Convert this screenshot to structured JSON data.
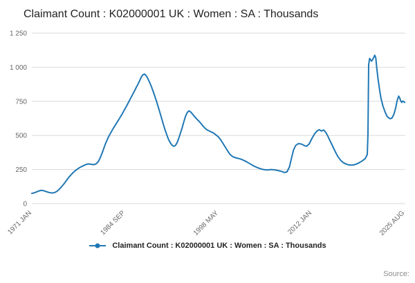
{
  "title": "Claimant Count : K02000001 UK : Women : SA : Thousands",
  "source": "Source:",
  "legend": {
    "label": "Claimant Count : K02000001 UK : Women : SA : Thousands"
  },
  "chart_data": {
    "type": "line",
    "title": "Claimant Count : K02000001 UK : Women : SA : Thousands",
    "xlabel": "",
    "ylabel": "",
    "xlim": [
      1971.0,
      2025.67
    ],
    "ylim": [
      0,
      1250
    ],
    "grid": "horizontal",
    "legend_position": "bottom",
    "line_color": "#1f77b4",
    "grid_color": "#d9d9d9",
    "axis_text_color": "#666666",
    "yticks": [
      {
        "value": 0,
        "label": "0"
      },
      {
        "value": 250,
        "label": "250"
      },
      {
        "value": 500,
        "label": "500"
      },
      {
        "value": 750,
        "label": "750"
      },
      {
        "value": 1000,
        "label": "1 000"
      },
      {
        "value": 1250,
        "label": "1 250"
      }
    ],
    "xticks": [
      {
        "value": 1971.0,
        "label": "1971 JAN"
      },
      {
        "value": 1984.67,
        "label": "1984 SEP"
      },
      {
        "value": 1998.33,
        "label": "1998 MAY"
      },
      {
        "value": 2012.0,
        "label": "2012 JAN"
      },
      {
        "value": 2025.58,
        "label": "2025 AUG"
      }
    ],
    "series": [
      {
        "name": "Claimant Count : K02000001 UK : Women : SA : Thousands",
        "points": [
          [
            1971.0,
            75
          ],
          [
            1971.25,
            78
          ],
          [
            1971.5,
            82
          ],
          [
            1971.75,
            87
          ],
          [
            1972.0,
            92
          ],
          [
            1972.25,
            96
          ],
          [
            1972.5,
            97
          ],
          [
            1972.75,
            94
          ],
          [
            1973.0,
            90
          ],
          [
            1973.25,
            86
          ],
          [
            1973.5,
            82
          ],
          [
            1973.75,
            80
          ],
          [
            1974.0,
            78
          ],
          [
            1974.25,
            80
          ],
          [
            1974.5,
            85
          ],
          [
            1974.75,
            93
          ],
          [
            1975.0,
            105
          ],
          [
            1975.25,
            118
          ],
          [
            1975.5,
            132
          ],
          [
            1975.75,
            148
          ],
          [
            1976.0,
            165
          ],
          [
            1976.25,
            182
          ],
          [
            1976.5,
            198
          ],
          [
            1976.75,
            212
          ],
          [
            1977.0,
            225
          ],
          [
            1977.25,
            237
          ],
          [
            1977.5,
            247
          ],
          [
            1977.75,
            256
          ],
          [
            1978.0,
            264
          ],
          [
            1978.25,
            271
          ],
          [
            1978.5,
            277
          ],
          [
            1978.75,
            283
          ],
          [
            1979.0,
            288
          ],
          [
            1979.25,
            291
          ],
          [
            1979.5,
            290
          ],
          [
            1979.75,
            288
          ],
          [
            1980.0,
            286
          ],
          [
            1980.25,
            288
          ],
          [
            1980.5,
            295
          ],
          [
            1980.75,
            310
          ],
          [
            1981.0,
            335
          ],
          [
            1981.25,
            365
          ],
          [
            1981.5,
            400
          ],
          [
            1981.75,
            435
          ],
          [
            1982.0,
            465
          ],
          [
            1982.25,
            492
          ],
          [
            1982.5,
            515
          ],
          [
            1982.75,
            537
          ],
          [
            1983.0,
            558
          ],
          [
            1983.25,
            578
          ],
          [
            1983.5,
            598
          ],
          [
            1983.75,
            618
          ],
          [
            1984.0,
            638
          ],
          [
            1984.25,
            660
          ],
          [
            1984.5,
            682
          ],
          [
            1984.75,
            705
          ],
          [
            1985.0,
            728
          ],
          [
            1985.25,
            752
          ],
          [
            1985.5,
            776
          ],
          [
            1985.75,
            800
          ],
          [
            1986.0,
            824
          ],
          [
            1986.25,
            848
          ],
          [
            1986.5,
            872
          ],
          [
            1986.75,
            898
          ],
          [
            1987.0,
            925
          ],
          [
            1987.25,
            945
          ],
          [
            1987.5,
            950
          ],
          [
            1987.75,
            938
          ],
          [
            1988.0,
            915
          ],
          [
            1988.25,
            888
          ],
          [
            1988.5,
            858
          ],
          [
            1988.75,
            825
          ],
          [
            1989.0,
            788
          ],
          [
            1989.25,
            750
          ],
          [
            1989.5,
            710
          ],
          [
            1989.75,
            668
          ],
          [
            1990.0,
            625
          ],
          [
            1990.25,
            582
          ],
          [
            1990.5,
            542
          ],
          [
            1990.75,
            505
          ],
          [
            1991.0,
            472
          ],
          [
            1991.25,
            448
          ],
          [
            1991.5,
            430
          ],
          [
            1991.75,
            420
          ],
          [
            1992.0,
            425
          ],
          [
            1992.25,
            445
          ],
          [
            1992.5,
            478
          ],
          [
            1992.75,
            515
          ],
          [
            1993.0,
            555
          ],
          [
            1993.25,
            600
          ],
          [
            1993.5,
            640
          ],
          [
            1993.75,
            668
          ],
          [
            1994.0,
            680
          ],
          [
            1994.25,
            672
          ],
          [
            1994.5,
            658
          ],
          [
            1994.75,
            642
          ],
          [
            1995.0,
            628
          ],
          [
            1995.25,
            615
          ],
          [
            1995.5,
            602
          ],
          [
            1995.75,
            588
          ],
          [
            1996.0,
            572
          ],
          [
            1996.25,
            558
          ],
          [
            1996.5,
            546
          ],
          [
            1996.75,
            538
          ],
          [
            1997.0,
            532
          ],
          [
            1997.25,
            526
          ],
          [
            1997.5,
            520
          ],
          [
            1997.75,
            512
          ],
          [
            1998.0,
            502
          ],
          [
            1998.25,
            492
          ],
          [
            1998.5,
            478
          ],
          [
            1998.75,
            460
          ],
          [
            1999.0,
            440
          ],
          [
            1999.25,
            420
          ],
          [
            1999.5,
            400
          ],
          [
            1999.75,
            380
          ],
          [
            2000.0,
            362
          ],
          [
            2000.25,
            350
          ],
          [
            2000.5,
            342
          ],
          [
            2001.0,
            334
          ],
          [
            2001.5,
            328
          ],
          [
            2002.0,
            318
          ],
          [
            2002.5,
            305
          ],
          [
            2003.0,
            290
          ],
          [
            2003.5,
            276
          ],
          [
            2004.0,
            264
          ],
          [
            2004.5,
            255
          ],
          [
            2005.0,
            249
          ],
          [
            2005.5,
            247
          ],
          [
            2006.0,
            250
          ],
          [
            2006.5,
            248
          ],
          [
            2007.0,
            243
          ],
          [
            2007.5,
            237
          ],
          [
            2008.0,
            228
          ],
          [
            2008.35,
            233
          ],
          [
            2008.7,
            268
          ],
          [
            2009.0,
            330
          ],
          [
            2009.3,
            392
          ],
          [
            2009.6,
            425
          ],
          [
            2010.0,
            440
          ],
          [
            2010.4,
            438
          ],
          [
            2010.8,
            428
          ],
          [
            2011.2,
            420
          ],
          [
            2011.6,
            438
          ],
          [
            2012.0,
            478
          ],
          [
            2012.4,
            512
          ],
          [
            2012.8,
            535
          ],
          [
            2013.1,
            542
          ],
          [
            2013.4,
            532
          ],
          [
            2013.7,
            540
          ],
          [
            2014.0,
            525
          ],
          [
            2014.3,
            498
          ],
          [
            2014.6,
            465
          ],
          [
            2015.0,
            425
          ],
          [
            2015.4,
            382
          ],
          [
            2015.8,
            345
          ],
          [
            2016.2,
            318
          ],
          [
            2016.6,
            300
          ],
          [
            2017.0,
            290
          ],
          [
            2017.4,
            284
          ],
          [
            2017.8,
            282
          ],
          [
            2018.2,
            285
          ],
          [
            2018.6,
            292
          ],
          [
            2019.0,
            302
          ],
          [
            2019.4,
            315
          ],
          [
            2019.8,
            330
          ],
          [
            2020.1,
            360
          ],
          [
            2020.2,
            510
          ],
          [
            2020.3,
            1020
          ],
          [
            2020.45,
            1065
          ],
          [
            2020.6,
            1052
          ],
          [
            2020.75,
            1045
          ],
          [
            2020.9,
            1058
          ],
          [
            2021.05,
            1072
          ],
          [
            2021.2,
            1088
          ],
          [
            2021.35,
            1070
          ],
          [
            2021.5,
            990
          ],
          [
            2021.7,
            905
          ],
          [
            2021.9,
            835
          ],
          [
            2022.1,
            775
          ],
          [
            2022.4,
            715
          ],
          [
            2022.7,
            672
          ],
          [
            2023.0,
            640
          ],
          [
            2023.25,
            628
          ],
          [
            2023.5,
            622
          ],
          [
            2023.75,
            630
          ],
          [
            2024.0,
            655
          ],
          [
            2024.25,
            700
          ],
          [
            2024.5,
            760
          ],
          [
            2024.7,
            788
          ],
          [
            2024.85,
            775
          ],
          [
            2025.0,
            752
          ],
          [
            2025.15,
            742
          ],
          [
            2025.3,
            752
          ],
          [
            2025.45,
            748
          ],
          [
            2025.58,
            742
          ]
        ]
      }
    ]
  }
}
